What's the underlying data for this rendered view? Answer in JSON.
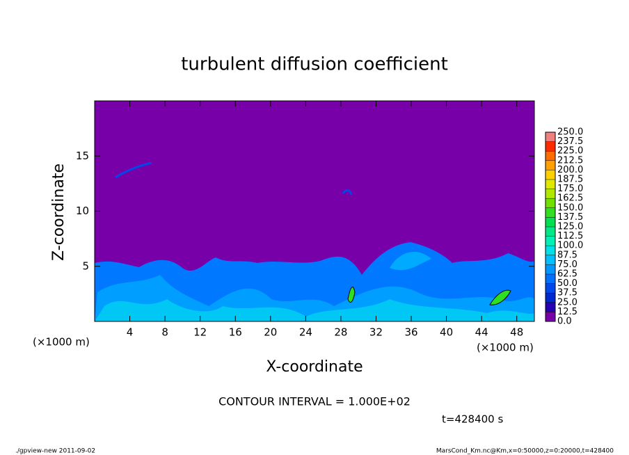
{
  "chart_data": {
    "type": "heatmap",
    "title": "turbulent diffusion coefficient",
    "xlabel": "X-coordinate",
    "ylabel": "Z-coordinate",
    "x_unit": "(×1000 m)",
    "xlim": [
      0,
      50
    ],
    "xticks": [
      4,
      8,
      12,
      16,
      20,
      24,
      28,
      32,
      36,
      40,
      44,
      48
    ],
    "ylim": [
      0,
      20
    ],
    "yticks": [
      5,
      10,
      15
    ],
    "colorbar": {
      "levels": [
        {
          "value": 0,
          "label": "0.0"
        },
        {
          "value": 12.5,
          "label": "12.5"
        },
        {
          "value": 25,
          "label": "25.0"
        },
        {
          "value": 37.5,
          "label": "37.5"
        },
        {
          "value": 50,
          "label": "50.0"
        },
        {
          "value": 62.5,
          "label": "62.5"
        },
        {
          "value": 75,
          "label": "75.0"
        },
        {
          "value": 87.5,
          "label": "87.5"
        },
        {
          "value": 100,
          "label": "100.0"
        },
        {
          "value": 112.5,
          "label": "112.5"
        },
        {
          "value": 125,
          "label": "125.0"
        },
        {
          "value": 137.5,
          "label": "137.5"
        },
        {
          "value": 150,
          "label": "150.0"
        },
        {
          "value": 162.5,
          "label": "162.5"
        },
        {
          "value": 175,
          "label": "175.0"
        },
        {
          "value": 187.5,
          "label": "187.5"
        },
        {
          "value": 200,
          "label": "200.0"
        },
        {
          "value": 212.5,
          "label": "212.5"
        },
        {
          "value": 225,
          "label": "225.0"
        },
        {
          "value": 237.5,
          "label": "237.5"
        },
        {
          "value": 250,
          "label": "250.0"
        }
      ],
      "colors": [
        "#7800a8",
        "#2800b4",
        "#0028d0",
        "#0048ec",
        "#0070ff",
        "#0098ff",
        "#00c0ff",
        "#00e0e8",
        "#00f0b8",
        "#00e888",
        "#00e050",
        "#30e020",
        "#70e000",
        "#b0e800",
        "#e0e800",
        "#ffd000",
        "#ffa000",
        "#ff6c00",
        "#ff2c00",
        "#f08080"
      ]
    },
    "annotations": {
      "contour_interval": "CONTOUR INTERVAL = 1.000E+02",
      "time": "t=428400 s",
      "footer_left": "./gpview-new  2011-09-02",
      "footer_right": "MarsCond_Km.nc@Km,x=0:50000,z=0:20000,t=428400"
    }
  }
}
